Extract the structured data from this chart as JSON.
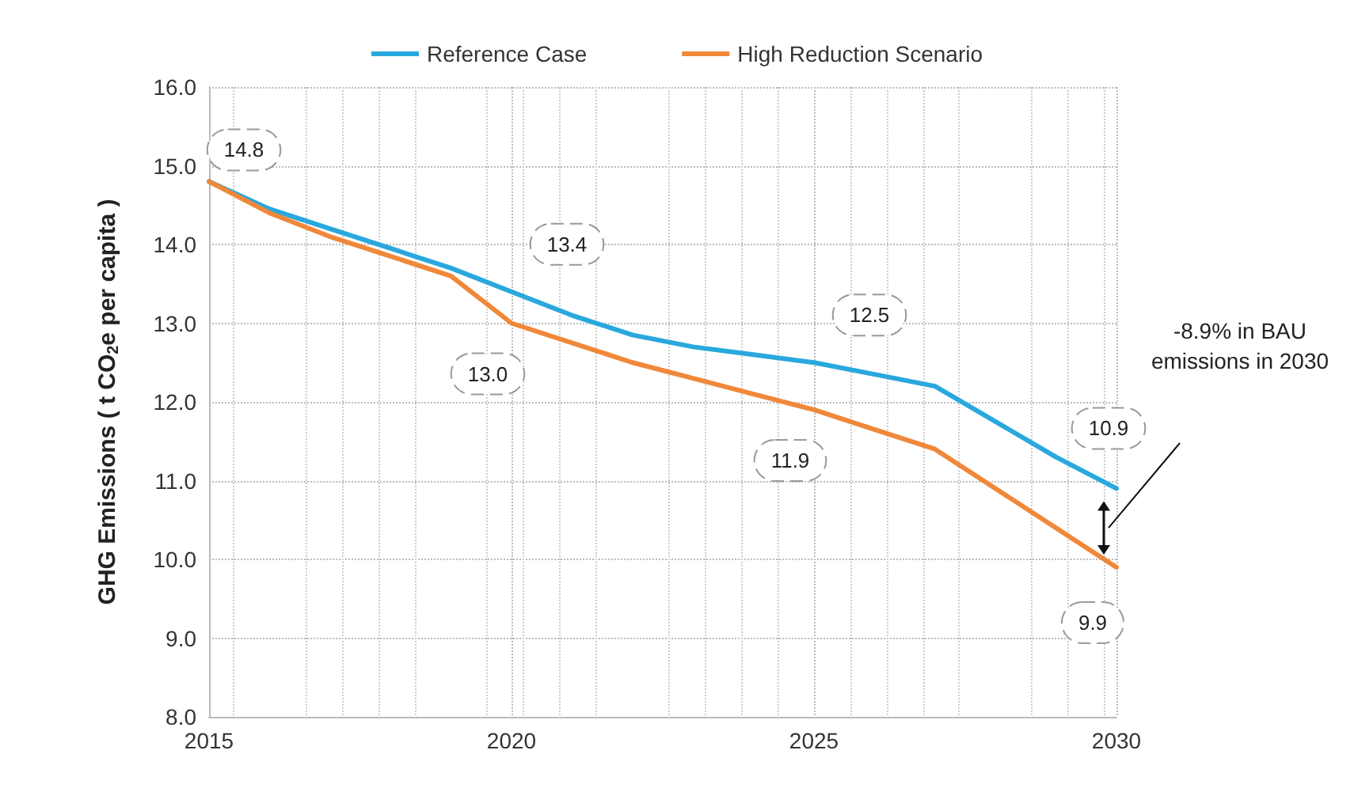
{
  "chart_data": {
    "type": "line",
    "ylabel": "GHG Emissions ( t CO$_{2}$e per capita )",
    "x": [
      2015,
      2016,
      2017,
      2018,
      2019,
      2020,
      2021,
      2022,
      2023,
      2024,
      2025,
      2026,
      2027,
      2028,
      2029,
      2030
    ],
    "series": [
      {
        "name": "Reference Case",
        "color": "#29a8de",
        "values": [
          14.8,
          14.45,
          14.2,
          13.95,
          13.7,
          13.4,
          13.1,
          12.85,
          12.7,
          12.6,
          12.5,
          12.35,
          12.2,
          11.75,
          11.3,
          10.9
        ],
        "value_labels": [
          "14.8",
          null,
          null,
          null,
          null,
          "13.4",
          null,
          null,
          null,
          null,
          "12.5",
          null,
          null,
          null,
          null,
          "10.9"
        ]
      },
      {
        "name": "High Reduction Scenario",
        "color": "#f0883a",
        "values": [
          14.8,
          14.4,
          14.1,
          13.85,
          13.6,
          13.0,
          12.75,
          12.5,
          12.3,
          12.1,
          11.9,
          11.65,
          11.4,
          10.9,
          10.4,
          9.9
        ],
        "value_labels": [
          null,
          null,
          null,
          null,
          null,
          "13.0",
          null,
          null,
          null,
          null,
          "11.9",
          null,
          null,
          null,
          null,
          "9.9"
        ]
      }
    ],
    "xlim": [
      2015,
      2030
    ],
    "xticks": [
      2015,
      2020,
      2025,
      2030
    ],
    "ylim": [
      8,
      16
    ],
    "yticks": [
      {
        "value": 8,
        "label": "8.0"
      },
      {
        "value": 9,
        "label": "9.0"
      },
      {
        "value": 10,
        "label": "10.0"
      },
      {
        "value": 11,
        "label": "11.0"
      },
      {
        "value": 12,
        "label": "12.0"
      },
      {
        "value": 13,
        "label": "13.0"
      },
      {
        "value": 14,
        "label": "14.0"
      },
      {
        "value": 15,
        "label": "15.0"
      },
      {
        "value": 16,
        "label": "16.0"
      }
    ],
    "annotations": [
      "-8.9% in BAU emissions in 2030"
    ],
    "grid": true,
    "legend": "top",
    "marker": "none",
    "line_style": "solid"
  }
}
